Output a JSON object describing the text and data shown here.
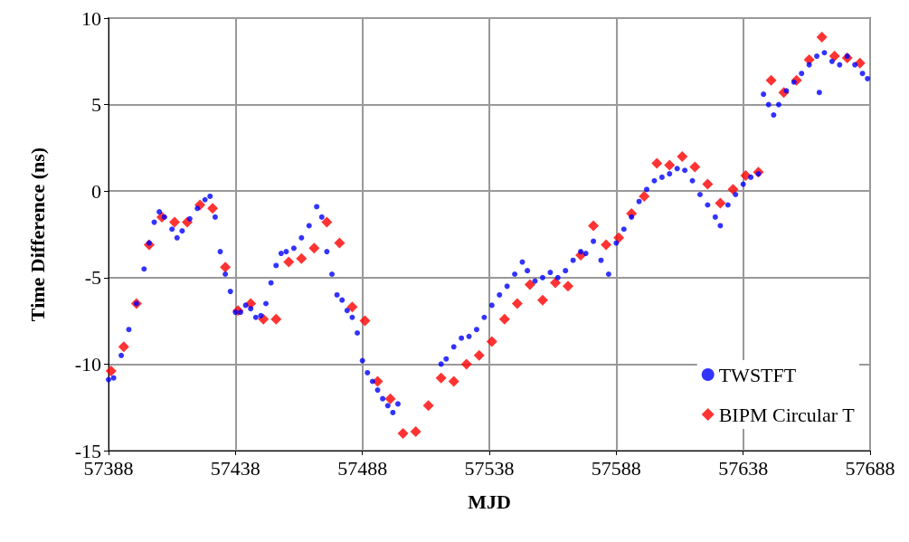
{
  "chart_data": {
    "type": "scatter",
    "xlabel": "MJD",
    "ylabel": "Time Difference (ns)",
    "xlim": [
      57388,
      57688
    ],
    "xticks": [
      57388,
      57438,
      57488,
      57538,
      57588,
      57638,
      57688
    ],
    "ylim": [
      -15,
      10
    ],
    "yticks": [
      -15,
      -10,
      -5,
      0,
      5,
      10
    ],
    "grid": true,
    "legend": "bottom right",
    "series": [
      {
        "name": "TWSTFT",
        "color": "#0000ff",
        "marker": "circle",
        "x": [
          57388,
          57390,
          57393,
          57396,
          57399,
          57402,
          57404,
          57406,
          57408,
          57410,
          57413,
          57415,
          57417,
          57420,
          57423,
          57426,
          57428,
          57430,
          57432,
          57434,
          57436,
          57438,
          57440,
          57442,
          57444,
          57446,
          57448,
          57450,
          57452,
          57454,
          57456,
          57458,
          57461,
          57464,
          57467,
          57470,
          57472,
          57474,
          57476,
          57478,
          57480,
          57482,
          57484,
          57486,
          57488,
          57490,
          57492,
          57494,
          57496,
          57498,
          57500,
          57502,
          57519,
          57521,
          57524,
          57527,
          57530,
          57533,
          57536,
          57539,
          57542,
          57545,
          57548,
          57551,
          57553,
          57556,
          57559,
          57562,
          57565,
          57568,
          57571,
          57574,
          57576,
          57579,
          57582,
          57585,
          57588,
          57591,
          57594,
          57597,
          57600,
          57603,
          57606,
          57609,
          57612,
          57615,
          57618,
          57621,
          57624,
          57627,
          57629,
          57632,
          57635,
          57638,
          57641,
          57644,
          57646,
          57648,
          57650,
          57652,
          57655,
          57658,
          57661,
          57664,
          57667,
          57668,
          57670,
          57673,
          57676,
          57679,
          57682,
          57685,
          57687
        ],
        "values": [
          -10.9,
          -10.8,
          -9.5,
          -8.0,
          -6.5,
          -4.5,
          -3.0,
          -1.8,
          -1.2,
          -1.5,
          -2.2,
          -2.7,
          -2.3,
          -1.6,
          -1.0,
          -0.5,
          -0.3,
          -1.5,
          -3.5,
          -4.8,
          -5.8,
          -7.0,
          -7.0,
          -6.6,
          -6.8,
          -7.3,
          -7.2,
          -6.5,
          -5.3,
          -4.3,
          -3.6,
          -3.5,
          -3.3,
          -2.7,
          -2.0,
          -0.9,
          -1.5,
          -3.5,
          -4.8,
          -6.0,
          -6.3,
          -6.9,
          -7.3,
          -8.2,
          -9.8,
          -10.5,
          -11.0,
          -11.5,
          -12.0,
          -12.4,
          -12.8,
          -12.3,
          -10.0,
          -9.7,
          -9.0,
          -8.5,
          -8.4,
          -8.0,
          -7.3,
          -6.6,
          -6.0,
          -5.5,
          -4.8,
          -4.1,
          -4.6,
          -5.2,
          -5.0,
          -4.7,
          -5.0,
          -4.6,
          -4.0,
          -3.5,
          -3.6,
          -2.9,
          -4.0,
          -4.8,
          -3.0,
          -2.2,
          -1.5,
          -0.6,
          0.1,
          0.6,
          0.8,
          1.0,
          1.3,
          1.2,
          0.6,
          -0.2,
          -0.8,
          -1.5,
          -2.0,
          -0.8,
          -0.2,
          0.4,
          0.8,
          1.0,
          5.6,
          5.0,
          4.4,
          5.0,
          5.8,
          6.3,
          6.8,
          7.3,
          7.8,
          5.7,
          8.0,
          7.5,
          7.3,
          7.8,
          7.3,
          6.8,
          6.5
        ]
      },
      {
        "name": "BIPM Circular T",
        "color": "#ff0000",
        "marker": "diamond",
        "x": [
          57389,
          57394,
          57399,
          57404,
          57409,
          57414,
          57419,
          57424,
          57429,
          57434,
          57439,
          57444,
          57449,
          57454,
          57459,
          57464,
          57469,
          57474,
          57479,
          57484,
          57489,
          57494,
          57499,
          57504,
          57509,
          57514,
          57519,
          57524,
          57529,
          57534,
          57539,
          57544,
          57549,
          57554,
          57559,
          57564,
          57569,
          57574,
          57579,
          57584,
          57589,
          57594,
          57599,
          57604,
          57609,
          57614,
          57619,
          57624,
          57629,
          57634,
          57639,
          57644,
          57649,
          57654,
          57659,
          57664,
          57669,
          57674,
          57679,
          57684
        ],
        "values": [
          -10.4,
          -9.0,
          -6.5,
          -3.1,
          -1.5,
          -1.8,
          -1.8,
          -0.8,
          -1.0,
          -4.4,
          -6.9,
          -6.5,
          -7.4,
          -7.4,
          -4.1,
          -3.9,
          -3.3,
          -1.8,
          -3.0,
          -6.7,
          -7.5,
          -11.0,
          -12.0,
          -14.0,
          -13.9,
          -12.4,
          -10.8,
          -11.0,
          -10.0,
          -9.5,
          -8.7,
          -7.4,
          -6.5,
          -5.4,
          -6.3,
          -5.3,
          -5.5,
          -3.7,
          -2.0,
          -3.1,
          -2.7,
          -1.3,
          -0.3,
          1.6,
          1.5,
          2.0,
          1.4,
          0.4,
          -0.7,
          0.1,
          0.9,
          1.1,
          6.4,
          5.7,
          6.4,
          7.6,
          8.9,
          7.8,
          7.7,
          7.4
        ]
      }
    ]
  }
}
